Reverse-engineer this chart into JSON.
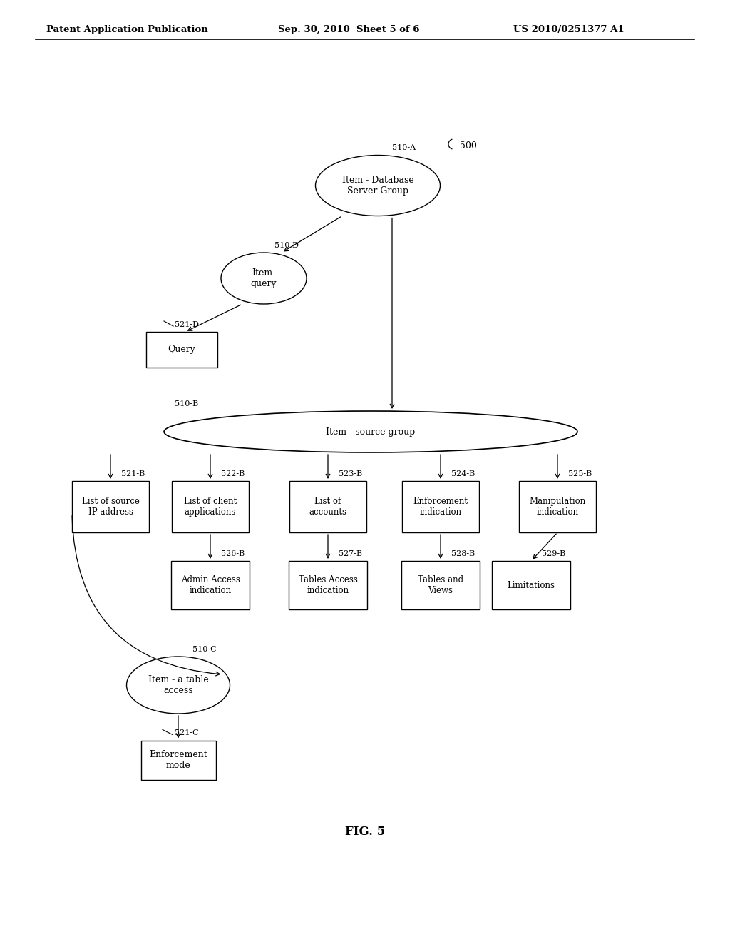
{
  "background_color": "#ffffff",
  "header_left": "Patent Application Publication",
  "header_mid": "Sep. 30, 2010  Sheet 5 of 6",
  "header_right": "US 2010/0251377 A1",
  "fig_label": "FIG. 5",
  "label_500": "500",
  "label_510A": "510-A",
  "label_510B": "510-B",
  "label_510C": "510-C",
  "label_510D": "510-D",
  "label_521D": "521-D",
  "label_521B": "521-B",
  "label_522B": "522-B",
  "label_523B": "523-B",
  "label_524B": "524-B",
  "label_525B": "525-B",
  "label_526B": "526-B",
  "label_527B": "527-B",
  "label_528B": "528-B",
  "label_529B": "529-B",
  "label_521C": "521-C",
  "node_510A_text": "Item - Database\nServer Group",
  "node_510B_text": "Item - source group",
  "node_510C_text": "Item - a table\naccess",
  "node_510D_text": "Item-\nquery",
  "node_521D_text": "Query",
  "node_521B_text": "List of source\nIP address",
  "node_522B_text": "List of client\napplications",
  "node_523B_text": "List of\naccounts",
  "node_524B_text": "Enforcement\nindication",
  "node_525B_text": "Manipulation\nindication",
  "node_526B_text": "Admin Access\nindication",
  "node_527B_text": "Tables Access\nindication",
  "node_528B_text": "Tables and\nViews",
  "node_529B_text": "Limitations",
  "node_521C_text": "Enforcement\nmode"
}
